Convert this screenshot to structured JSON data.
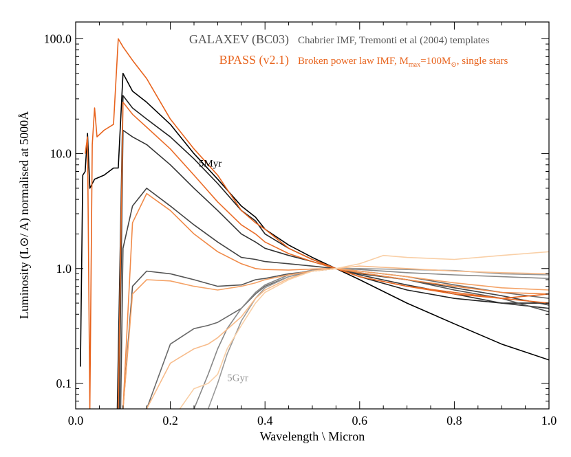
{
  "chart_data": {
    "type": "line",
    "xlabel": "Wavelength \\ Micron",
    "ylabel": "Luminosity (L⊙/ A) normalised at 5000Å",
    "xlim": [
      0.0,
      1.0
    ],
    "ylim": [
      0.06,
      140
    ],
    "yscale": "log",
    "grid": false,
    "x_ticks": [
      {
        "value": 0.0,
        "label": "0.0"
      },
      {
        "value": 0.2,
        "label": "0.2"
      },
      {
        "value": 0.4,
        "label": "0.4"
      },
      {
        "value": 0.6,
        "label": "0.6"
      },
      {
        "value": 0.8,
        "label": "0.8"
      },
      {
        "value": 1.0,
        "label": "1.0"
      }
    ],
    "y_ticks": [
      {
        "value": 0.1,
        "label": "0.1"
      },
      {
        "value": 1.0,
        "label": "1.0"
      },
      {
        "value": 10.0,
        "label": "10.0"
      },
      {
        "value": 100.0,
        "label": "100.0"
      }
    ],
    "legend": {
      "placement": "top-right",
      "entries": [
        {
          "name": "GALAXEV (BC03)",
          "desc": "Chabrier IMF, Tremonti et al (2004) templates",
          "color": "#555555"
        },
        {
          "name": "BPASS (v2.1)",
          "desc": "Broken power law IMF, M",
          "desc_sub": "max",
          "desc_mid": "=100M",
          "desc_sub2": "⊙",
          "desc_end": ", single stars",
          "color": "#e8641e"
        }
      ]
    },
    "annotations": [
      {
        "text": "5Myr",
        "x": 0.26,
        "y": 7.7,
        "color": "#000000"
      },
      {
        "text": "5Gyr",
        "x": 0.32,
        "y": 0.105,
        "color": "#999999"
      }
    ],
    "series": [
      {
        "model": "GALAXEV",
        "color": "#000000",
        "x": [
          0.01,
          0.015,
          0.02,
          0.025,
          0.03,
          0.04,
          0.06,
          0.08,
          0.09,
          0.1,
          0.12,
          0.15,
          0.2,
          0.25,
          0.3,
          0.35,
          0.38,
          0.4,
          0.45,
          0.5,
          0.55,
          0.6,
          0.7,
          0.8,
          0.9,
          1.0
        ],
        "y": [
          0.14,
          6.5,
          7,
          15,
          5,
          6,
          6.5,
          7.5,
          7.5,
          50,
          35,
          28,
          18,
          10,
          6,
          3.5,
          2.8,
          2.2,
          1.6,
          1.25,
          1.0,
          0.8,
          0.5,
          0.33,
          0.22,
          0.16
        ]
      },
      {
        "model": "GALAXEV",
        "color": "#222222",
        "x": [
          0.088,
          0.1,
          0.12,
          0.15,
          0.2,
          0.25,
          0.3,
          0.35,
          0.38,
          0.4,
          0.45,
          0.5,
          0.55,
          0.6,
          0.7,
          0.8,
          0.9,
          1.0
        ],
        "y": [
          0.06,
          32,
          25,
          20,
          14,
          9,
          5.5,
          3.2,
          2.6,
          2.0,
          1.5,
          1.2,
          1.0,
          0.85,
          0.65,
          0.55,
          0.5,
          0.5
        ]
      },
      {
        "model": "GALAXEV",
        "color": "#333333",
        "x": [
          0.092,
          0.1,
          0.12,
          0.15,
          0.2,
          0.25,
          0.3,
          0.35,
          0.38,
          0.4,
          0.45,
          0.5,
          0.55,
          0.6,
          0.7,
          0.8,
          0.9,
          1.0
        ],
        "y": [
          0.06,
          16,
          14,
          12,
          8,
          5,
          3.2,
          2.0,
          1.7,
          1.5,
          1.3,
          1.15,
          1.0,
          0.88,
          0.72,
          0.6,
          0.5,
          0.45
        ]
      },
      {
        "model": "GALAXEV",
        "color": "#444444",
        "x": [
          0.095,
          0.1,
          0.12,
          0.15,
          0.2,
          0.25,
          0.3,
          0.35,
          0.38,
          0.4,
          0.45,
          0.5,
          0.55,
          0.6,
          0.7,
          0.8,
          0.9,
          1.0
        ],
        "y": [
          0.06,
          1.5,
          3.5,
          5,
          3.5,
          2.4,
          1.7,
          1.25,
          1.2,
          1.15,
          1.1,
          1.05,
          1.0,
          0.9,
          0.8,
          0.68,
          0.58,
          0.48
        ]
      },
      {
        "model": "GALAXEV",
        "color": "#555555",
        "x": [
          0.1,
          0.12,
          0.15,
          0.2,
          0.25,
          0.3,
          0.35,
          0.38,
          0.4,
          0.45,
          0.5,
          0.55,
          0.6,
          0.7,
          0.8,
          0.9,
          1.0
        ],
        "y": [
          0.06,
          0.7,
          0.95,
          0.9,
          0.8,
          0.7,
          0.72,
          0.8,
          0.82,
          0.9,
          0.95,
          1.0,
          0.92,
          0.8,
          0.65,
          0.55,
          0.42
        ]
      },
      {
        "model": "GALAXEV",
        "color": "#6a6a6a",
        "x": [
          0.15,
          0.2,
          0.25,
          0.28,
          0.3,
          0.35,
          0.38,
          0.4,
          0.45,
          0.5,
          0.55,
          0.6,
          0.7,
          0.8,
          0.9,
          1.0
        ],
        "y": [
          0.06,
          0.22,
          0.3,
          0.32,
          0.34,
          0.45,
          0.6,
          0.7,
          0.85,
          0.95,
          1.0,
          0.95,
          0.85,
          0.72,
          0.62,
          0.55
        ]
      },
      {
        "model": "GALAXEV",
        "color": "#888888",
        "x": [
          0.25,
          0.28,
          0.3,
          0.32,
          0.35,
          0.38,
          0.4,
          0.45,
          0.5,
          0.55,
          0.6,
          0.7,
          0.8,
          0.9,
          1.0
        ],
        "y": [
          0.06,
          0.12,
          0.2,
          0.3,
          0.45,
          0.62,
          0.72,
          0.88,
          0.97,
          1.0,
          0.98,
          0.92,
          0.88,
          0.85,
          0.82
        ]
      },
      {
        "model": "GALAXEV",
        "color": "#999999",
        "x": [
          0.28,
          0.3,
          0.32,
          0.35,
          0.38,
          0.4,
          0.45,
          0.5,
          0.55,
          0.6,
          0.7,
          0.8,
          0.9,
          1.0
        ],
        "y": [
          0.06,
          0.1,
          0.18,
          0.35,
          0.55,
          0.68,
          0.85,
          0.97,
          1.0,
          1.0,
          0.98,
          0.96,
          0.9,
          0.88
        ]
      },
      {
        "model": "BPASS",
        "color": "#e8641e",
        "x": [
          0.02,
          0.025,
          0.03,
          0.035,
          0.04,
          0.045,
          0.06,
          0.08,
          0.09,
          0.1,
          0.12,
          0.15,
          0.2,
          0.25,
          0.3,
          0.35,
          0.38,
          0.4,
          0.45,
          0.5,
          0.55,
          0.6,
          0.7,
          0.8,
          0.9,
          1.0
        ],
        "y": [
          10,
          14,
          0.06,
          12,
          25,
          14,
          16,
          18,
          100,
          85,
          65,
          45,
          20,
          11,
          6.5,
          3.2,
          2.5,
          2.2,
          1.5,
          1.2,
          1.0,
          0.85,
          0.7,
          0.6,
          0.55,
          0.6
        ]
      },
      {
        "model": "BPASS",
        "color": "#ea6c28",
        "x": [
          0.09,
          0.1,
          0.12,
          0.15,
          0.2,
          0.25,
          0.3,
          0.35,
          0.38,
          0.4,
          0.45,
          0.5,
          0.55,
          0.6,
          0.7,
          0.8,
          0.9,
          1.0
        ],
        "y": [
          0.06,
          28,
          22,
          17,
          11,
          6.5,
          3.8,
          2.4,
          2.0,
          1.7,
          1.35,
          1.15,
          1.0,
          0.85,
          0.7,
          0.62,
          0.55,
          0.5
        ]
      },
      {
        "model": "BPASS",
        "color": "#f08a48",
        "x": [
          0.1,
          0.12,
          0.15,
          0.2,
          0.25,
          0.3,
          0.35,
          0.38,
          0.4,
          0.45,
          0.5,
          0.55,
          0.6,
          0.7,
          0.8,
          0.9,
          1.0
        ],
        "y": [
          0.06,
          2.5,
          4.5,
          3.2,
          2.0,
          1.4,
          1.1,
          1.0,
          0.98,
          0.97,
          0.99,
          1.0,
          0.92,
          0.8,
          0.7,
          0.62,
          0.6
        ]
      },
      {
        "model": "BPASS",
        "color": "#f4a266",
        "x": [
          0.1,
          0.12,
          0.15,
          0.2,
          0.25,
          0.3,
          0.35,
          0.38,
          0.4,
          0.45,
          0.5,
          0.55,
          0.6,
          0.7,
          0.8,
          0.9,
          1.0
        ],
        "y": [
          0.06,
          0.6,
          0.8,
          0.78,
          0.7,
          0.65,
          0.7,
          0.75,
          0.8,
          0.88,
          0.95,
          1.0,
          0.95,
          0.85,
          0.75,
          0.68,
          0.65
        ]
      },
      {
        "model": "BPASS",
        "color": "#f7bb8a",
        "x": [
          0.15,
          0.2,
          0.25,
          0.28,
          0.3,
          0.35,
          0.38,
          0.4,
          0.45,
          0.5,
          0.55,
          0.6,
          0.7,
          0.8,
          0.9,
          1.0
        ],
        "y": [
          0.06,
          0.15,
          0.2,
          0.22,
          0.25,
          0.38,
          0.55,
          0.65,
          0.82,
          0.95,
          1.0,
          1.05,
          1.0,
          0.95,
          0.92,
          0.9
        ]
      },
      {
        "model": "BPASS",
        "color": "#f9cfa6",
        "x": [
          0.22,
          0.25,
          0.28,
          0.3,
          0.32,
          0.35,
          0.38,
          0.4,
          0.45,
          0.5,
          0.55,
          0.6,
          0.65,
          0.7,
          0.8,
          0.9,
          1.0
        ],
        "y": [
          0.06,
          0.09,
          0.1,
          0.12,
          0.2,
          0.32,
          0.5,
          0.62,
          0.8,
          0.95,
          1.0,
          1.1,
          1.3,
          1.25,
          1.2,
          1.3,
          1.4
        ]
      }
    ]
  }
}
